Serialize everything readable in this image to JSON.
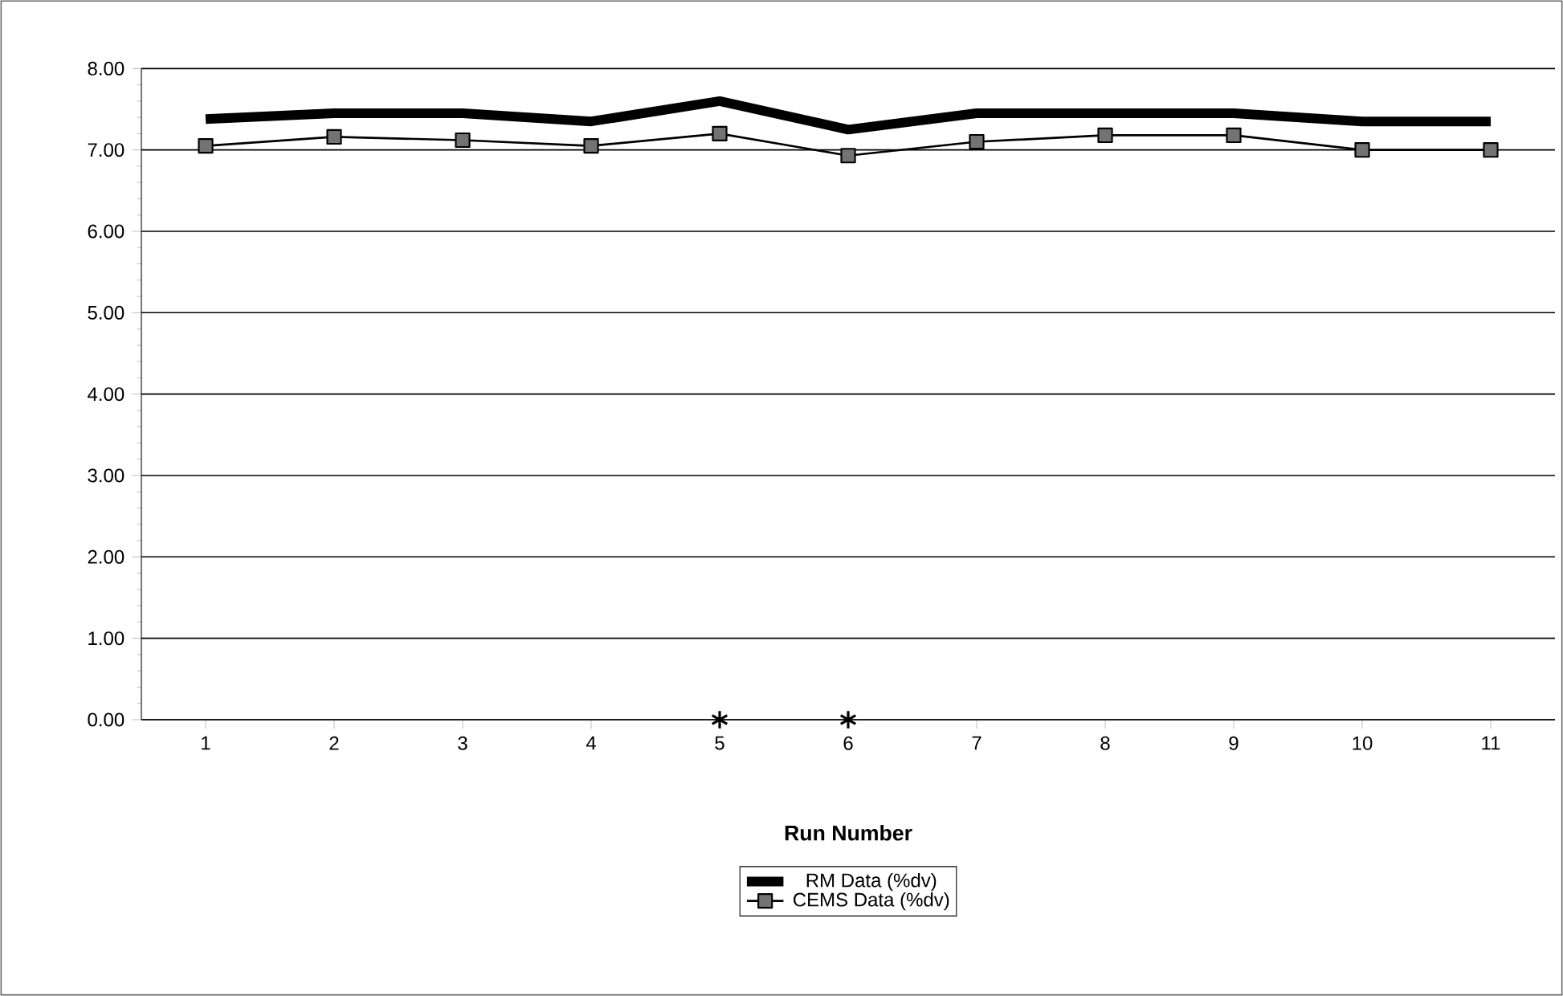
{
  "chart_data": {
    "type": "line",
    "xlabel": "Run Number",
    "categories": [
      "1",
      "2",
      "3",
      "4",
      "5",
      "6",
      "7",
      "8",
      "9",
      "10",
      "11"
    ],
    "ylim": [
      0,
      8
    ],
    "yticks": [
      {
        "value": 0,
        "label": "0.00"
      },
      {
        "value": 1,
        "label": "1.00"
      },
      {
        "value": 2,
        "label": "2.00"
      },
      {
        "value": 3,
        "label": "3.00"
      },
      {
        "value": 4,
        "label": "4.00"
      },
      {
        "value": 5,
        "label": "5.00"
      },
      {
        "value": 6,
        "label": "6.00"
      },
      {
        "value": 7,
        "label": "7.00"
      },
      {
        "value": 8,
        "label": "8.00"
      }
    ],
    "grid": "y",
    "legend": "bottom",
    "series": [
      {
        "name": "RM Data   (%dv)",
        "color": "#000000",
        "marker": "none",
        "values": [
          7.38,
          7.45,
          7.45,
          7.35,
          7.6,
          7.25,
          7.45,
          7.45,
          7.45,
          7.35,
          7.35
        ]
      },
      {
        "name": "CEMS Data (%dv)",
        "color": "#000000",
        "marker": "square",
        "values": [
          7.05,
          7.16,
          7.12,
          7.05,
          7.2,
          6.93,
          7.1,
          7.18,
          7.18,
          7.0,
          7.0
        ]
      },
      {
        "type": "scatter",
        "color": "#000000",
        "marker": "cross",
        "values": [
          null,
          null,
          null,
          null,
          0,
          0,
          null,
          null,
          null,
          null,
          null
        ]
      }
    ]
  }
}
